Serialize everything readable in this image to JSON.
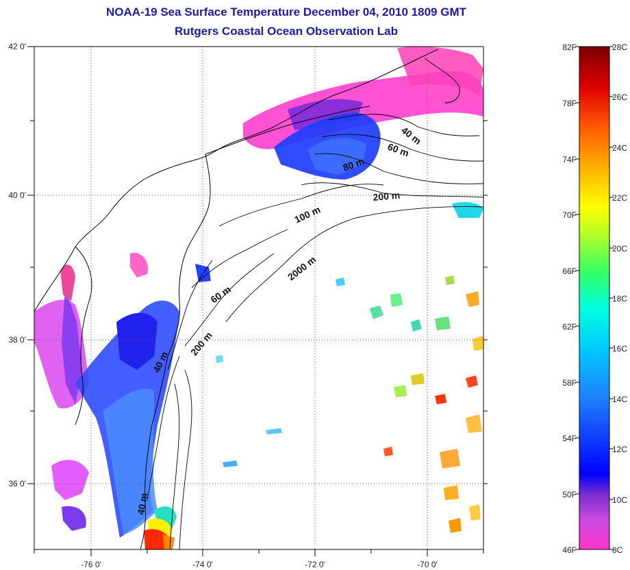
{
  "title": "NOAA-19 Sea Surface Temperature December 04, 2010 1809 GMT",
  "subtitle": "Rutgers Coastal Ocean Observation Lab",
  "map": {
    "lon_range": [
      -77.0,
      -69.0
    ],
    "lat_range": [
      35.0,
      42.0
    ],
    "lon_ticks": [
      "-76 0'",
      "-74 0'",
      "-72 0'",
      "-70 0'"
    ],
    "lat_ticks": [
      "42 0'",
      "40 0'",
      "38 0'",
      "36 0'"
    ],
    "grid": "dotted"
  },
  "contour_labels": [
    {
      "text": "40 m"
    },
    {
      "text": "60 m"
    },
    {
      "text": "80 m"
    },
    {
      "text": "200 m"
    },
    {
      "text": "100 m"
    },
    {
      "text": "2000 m"
    },
    {
      "text": "60 m"
    },
    {
      "text": "200 m"
    },
    {
      "text": "40 m"
    },
    {
      "text": "40 m"
    }
  ],
  "colorbar": {
    "fahrenheit_labels": [
      "82F",
      "78F",
      "74F",
      "70F",
      "66F",
      "62F",
      "58F",
      "54F",
      "50F",
      "46F"
    ],
    "celsius_labels": [
      "28C",
      "26C",
      "24C",
      "22C",
      "20C",
      "18C",
      "16C",
      "14C",
      "12C",
      "10C",
      "8C"
    ],
    "colors": [
      "#ff33cc",
      "#9b30d0",
      "#0000ff",
      "#1e90ff",
      "#00e5ff",
      "#33ff88",
      "#ffff00",
      "#ffa500",
      "#ff2200",
      "#7a0000"
    ]
  }
}
